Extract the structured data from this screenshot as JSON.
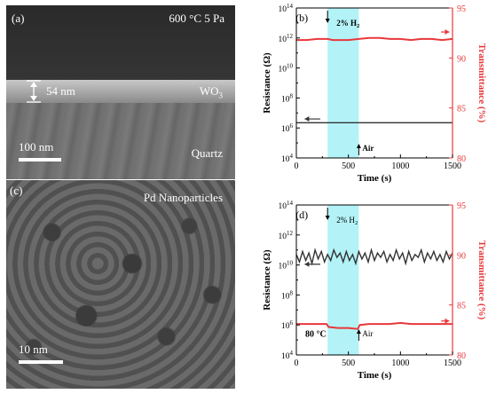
{
  "panel_a": {
    "label": "(a)",
    "condition": "600 °C 5 Pa",
    "thickness": "54 nm",
    "film": "WO",
    "film_sub": "3",
    "substrate": "Quartz",
    "scale": "100 nm"
  },
  "panel_c": {
    "label": "(c)",
    "title": "Pd Nanoparticles",
    "scale": "10 nm"
  },
  "colors": {
    "resistance": "#333333",
    "transmittance": "#e8383b",
    "h2_band": "#b3f3f7"
  },
  "chart_data": [
    {
      "type": "line",
      "panel": "(b)",
      "xlabel": "Time (s)",
      "ylabel_left": "Resistance (Ω)",
      "ylabel_right": "Transmittance (%)",
      "xlim": [
        0,
        1500
      ],
      "xticks": [
        "0",
        "500",
        "1000",
        "1500"
      ],
      "ylim_left_log10": [
        4,
        14
      ],
      "yticks_left": [
        {
          "base": "10",
          "exp": "4"
        },
        {
          "base": "10",
          "exp": "6"
        },
        {
          "base": "10",
          "exp": "8"
        },
        {
          "base": "10",
          "exp": "10"
        },
        {
          "base": "10",
          "exp": "12"
        },
        {
          "base": "10",
          "exp": "14"
        }
      ],
      "ylim_right": [
        80,
        95
      ],
      "yticks_right": [
        "80",
        "85",
        "90",
        "95"
      ],
      "shaded": [
        300,
        600
      ],
      "annotations": [
        {
          "text": "2% H",
          "sub": "2",
          "x": 300,
          "pos": "top"
        },
        {
          "text": "Air",
          "sub": "",
          "x": 600,
          "pos": "bottom"
        }
      ],
      "series": [
        {
          "axis": "left",
          "x": [
            0,
            200,
            400,
            600,
            800,
            1000,
            1200,
            1500
          ],
          "y_log10": [
            6.35,
            6.35,
            6.35,
            6.35,
            6.35,
            6.35,
            6.35,
            6.35
          ]
        },
        {
          "axis": "right",
          "x": [
            0,
            100,
            200,
            300,
            350,
            400,
            500,
            600,
            700,
            800,
            900,
            1000,
            1100,
            1200,
            1300,
            1400,
            1500
          ],
          "y": [
            91.8,
            91.8,
            91.9,
            91.9,
            91.8,
            91.8,
            91.8,
            91.9,
            92.0,
            92.0,
            91.9,
            91.9,
            91.8,
            91.9,
            91.9,
            91.8,
            91.9
          ]
        }
      ]
    },
    {
      "type": "line",
      "panel": "(d)",
      "xlabel": "Time (s)",
      "ylabel_left": "Resistance (Ω)",
      "ylabel_right": "Transmittance (%)",
      "xlim": [
        0,
        1500
      ],
      "xticks": [
        "0",
        "500",
        "1000",
        "1500"
      ],
      "ylim_left_log10": [
        4,
        14
      ],
      "yticks_left": [
        {
          "base": "10",
          "exp": "4"
        },
        {
          "base": "10",
          "exp": "6"
        },
        {
          "base": "10",
          "exp": "8"
        },
        {
          "base": "10",
          "exp": "10"
        },
        {
          "base": "10",
          "exp": "12"
        },
        {
          "base": "10",
          "exp": "14"
        }
      ],
      "ylim_right": [
        80,
        95
      ],
      "yticks_right": [
        "80",
        "85",
        "90",
        "95"
      ],
      "shaded": [
        300,
        600
      ],
      "temperature": "80 °C",
      "annotations": [
        {
          "text": "2% H",
          "sub": "2",
          "x": 300,
          "pos": "top"
        },
        {
          "text": "Air",
          "sub": "",
          "x": 600,
          "pos": "bottom"
        }
      ],
      "series": [
        {
          "axis": "left",
          "x": [
            0,
            30,
            60,
            90,
            120,
            150,
            180,
            210,
            240,
            270,
            300,
            330,
            360,
            390,
            420,
            450,
            480,
            510,
            540,
            570,
            600,
            630,
            660,
            690,
            720,
            750,
            780,
            810,
            840,
            870,
            900,
            930,
            960,
            990,
            1020,
            1050,
            1080,
            1110,
            1140,
            1170,
            1200,
            1230,
            1260,
            1290,
            1320,
            1350,
            1380,
            1410,
            1440,
            1470,
            1500
          ],
          "y_log10": [
            10.7,
            10.2,
            10.9,
            10.3,
            10.8,
            10.1,
            11.0,
            10.4,
            10.9,
            10.2,
            10.7,
            10.3,
            11.0,
            10.5,
            10.8,
            10.2,
            10.9,
            10.3,
            10.7,
            10.1,
            10.9,
            10.4,
            10.8,
            10.2,
            11.0,
            10.3,
            10.8,
            10.5,
            10.9,
            10.2,
            10.7,
            10.3,
            11.0,
            10.4,
            10.8,
            10.1,
            10.9,
            10.3,
            10.7,
            10.5,
            11.0,
            10.2,
            10.8,
            10.4,
            10.9,
            10.3,
            10.7,
            10.2,
            10.9,
            10.4,
            10.8
          ]
        },
        {
          "axis": "right",
          "x": [
            0,
            100,
            200,
            290,
            310,
            400,
            500,
            590,
            610,
            700,
            800,
            900,
            1000,
            1100,
            1200,
            1300,
            1400,
            1500
          ],
          "y": [
            83.1,
            83.1,
            83.1,
            83.1,
            82.8,
            82.7,
            82.7,
            82.6,
            83.0,
            83.1,
            83.1,
            83.1,
            83.2,
            83.1,
            83.1,
            83.1,
            83.1,
            83.1
          ]
        }
      ]
    }
  ]
}
